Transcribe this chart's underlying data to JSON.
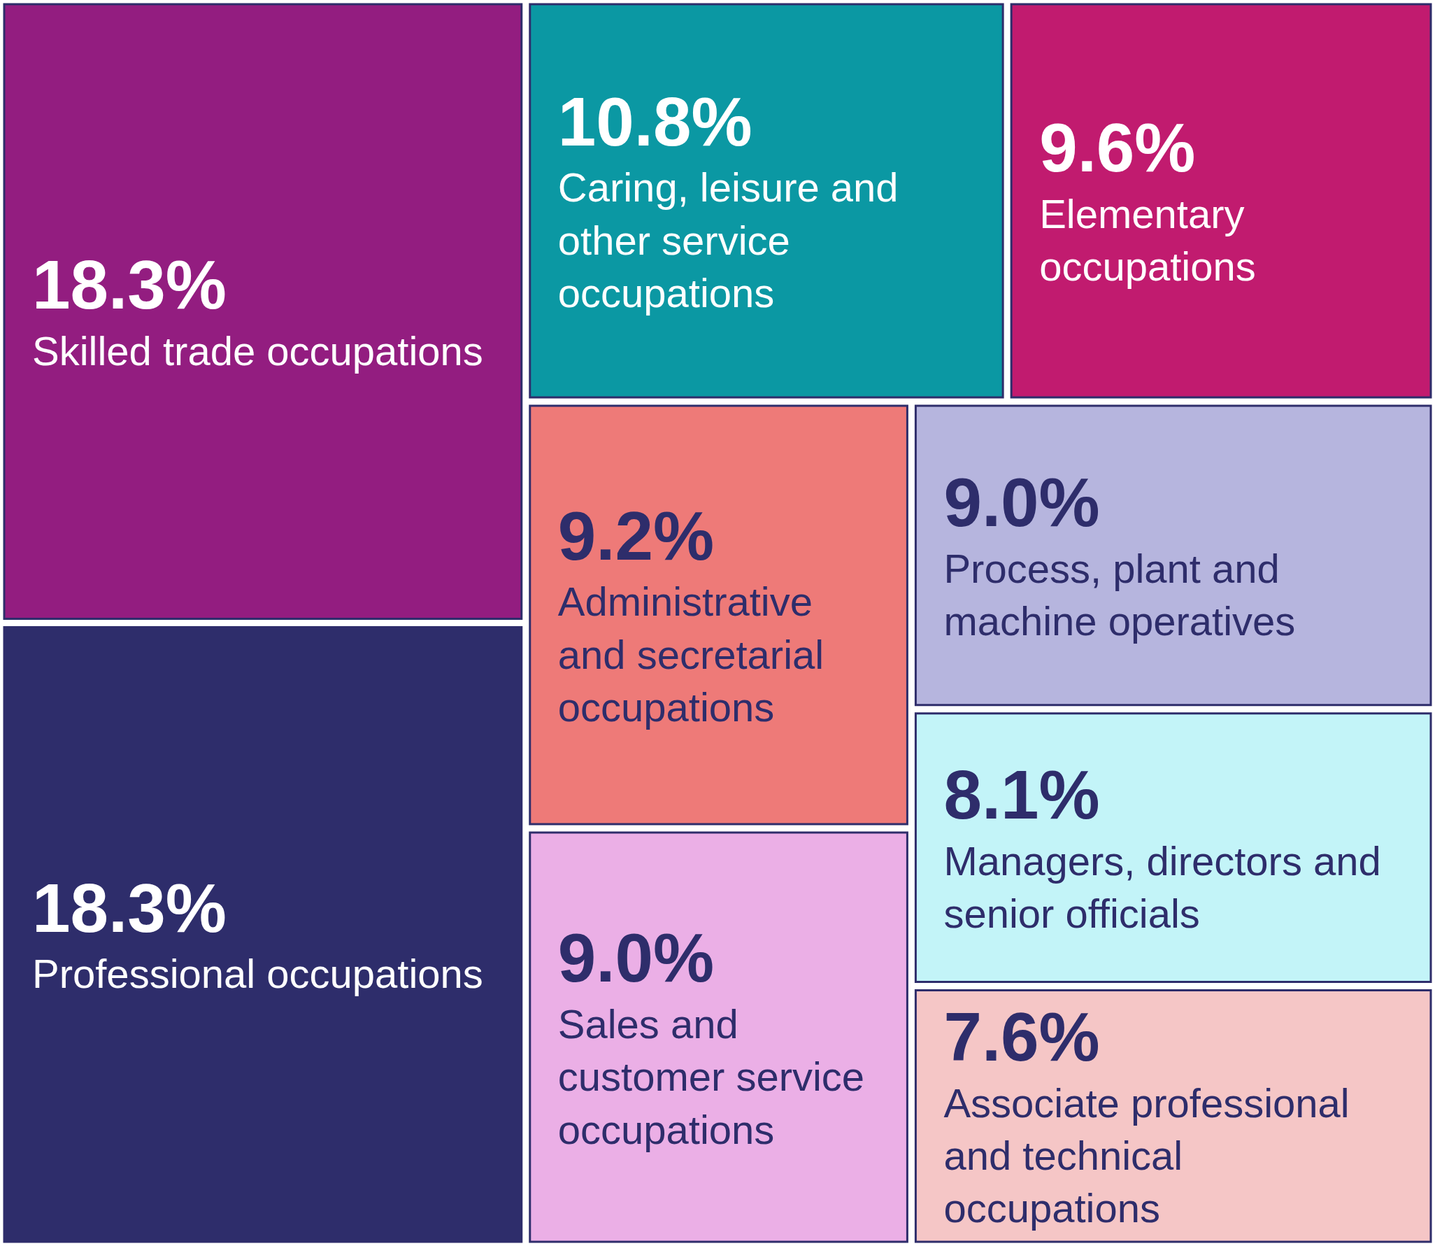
{
  "chart_data": {
    "type": "other",
    "categories": [
      "Skilled trade occupations",
      "Professional occupations",
      "Caring, leisure and other service occupations",
      "Elementary occupations",
      "Administrative and secretarial occupations",
      "Sales and customer service occupations",
      "Process, plant and machine operatives",
      "Managers, directors and senior officials",
      "Associate professional and technical occupations"
    ],
    "values": [
      18.3,
      18.3,
      10.8,
      9.6,
      9.2,
      9.0,
      9.0,
      8.1,
      7.6
    ],
    "value_labels": [
      "18.3%",
      "18.3%",
      "10.8%",
      "9.6%",
      "9.2%",
      "9.0%",
      "9.0%",
      "8.1%",
      "7.6%"
    ],
    "colors": [
      "#931d80",
      "#2e2d6b",
      "#0b98a3",
      "#c11b6f",
      "#ee7a78",
      "#ebafe6",
      "#b6b5de",
      "#c3f4f8",
      "#f5c6c6"
    ]
  }
}
